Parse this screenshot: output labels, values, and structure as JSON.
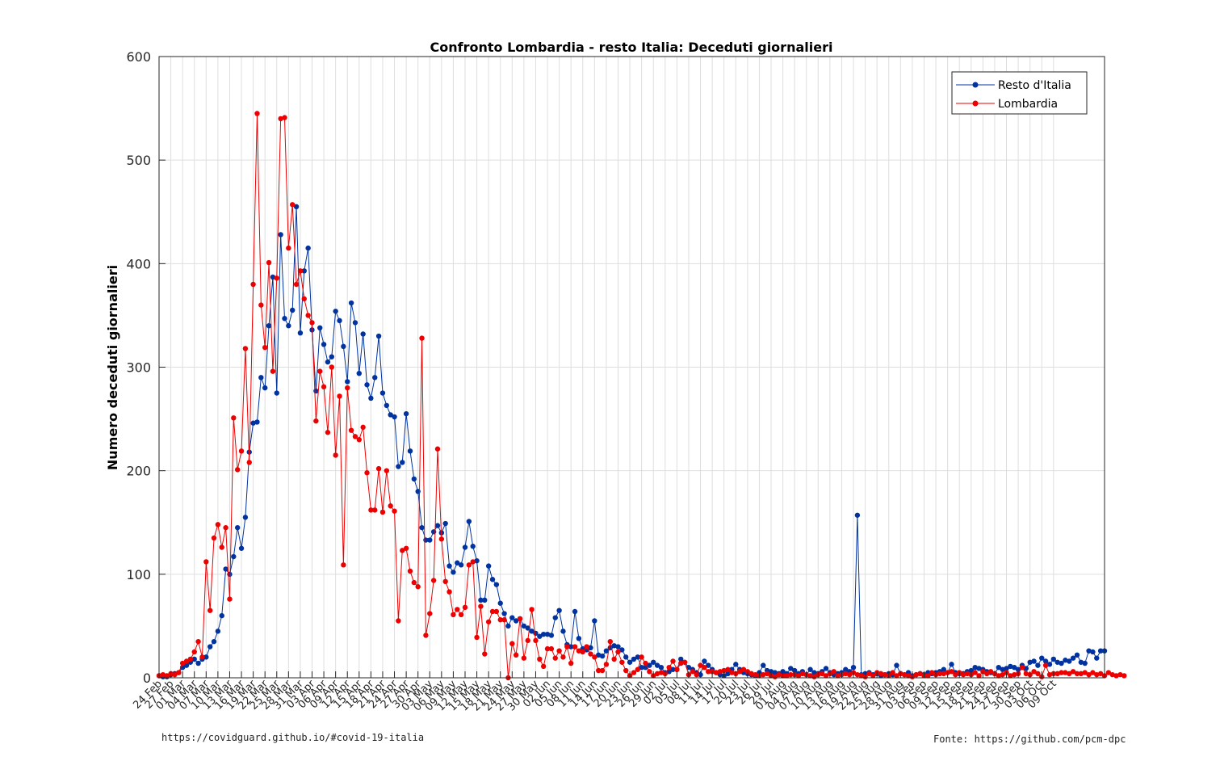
{
  "figure": {
    "footnote_left": "https://covidguard.github.io/#covid-19-italia",
    "footnote_right": "Fonte: https://github.com/pcm-dpc"
  },
  "chart_data": {
    "type": "line",
    "title": "Confronto Lombardia - resto Italia: Deceduti giornalieri",
    "xlabel": "",
    "ylabel": "Numero deceduti giornalieri",
    "ylim": [
      0,
      600
    ],
    "yticks": [
      0,
      100,
      200,
      300,
      400,
      500,
      600
    ],
    "grid": true,
    "legend_position": "top-right",
    "start_date": "2020-02-24",
    "xtick_labels": [
      "24 Feb",
      "27 Feb",
      "01 Mar",
      "04 Mar",
      "07 Mar",
      "10 Mar",
      "13 Mar",
      "16 Mar",
      "19 Mar",
      "22 Mar",
      "25 Mar",
      "28 Mar",
      "31 Mar",
      "03 Apr",
      "06 Apr",
      "09 Apr",
      "12 Apr",
      "15 Apr",
      "18 Apr",
      "21 Apr",
      "24 Apr",
      "27 Apr",
      "30 Apr",
      "03 May",
      "06 May",
      "09 May",
      "12 May",
      "15 May",
      "18 May",
      "21 May",
      "24 May",
      "27 May",
      "30 May",
      "02 Jun",
      "05 Jun",
      "08 Jun",
      "11 Jun",
      "14 Jun",
      "17 Jun",
      "20 Jun",
      "23 Jun",
      "26 Jun",
      "29 Jun",
      "02 Jul",
      "05 Jul",
      "08 Jul",
      "11 Jul",
      "14 Jul",
      "17 Jul",
      "20 Jul",
      "23 Jul",
      "26 Jul",
      "29 Jul",
      "01 Aug",
      "04 Aug",
      "07 Aug",
      "10 Aug",
      "13 Aug",
      "16 Aug",
      "19 Aug",
      "22 Aug",
      "25 Aug",
      "28 Aug",
      "31 Aug",
      "03 Sep",
      "06 Sep",
      "09 Sep",
      "12 Sep",
      "15 Sep",
      "18 Sep",
      "21 Sep",
      "24 Sep",
      "27 Sep",
      "30 Sep",
      "03 Oct",
      "06 Oct",
      "09 Oct"
    ],
    "series": [
      {
        "name": "Resto d'Italia",
        "color": "#0033a0",
        "values": [
          2,
          1,
          1,
          3,
          4,
          5,
          10,
          12,
          15,
          18,
          14,
          18,
          20,
          30,
          35,
          45,
          60,
          105,
          100,
          117,
          145,
          125,
          155,
          218,
          246,
          247,
          290,
          280,
          340,
          387,
          275,
          428,
          347,
          340,
          355,
          455,
          333,
          393,
          415,
          336,
          277,
          338,
          322,
          305,
          310,
          354,
          345,
          320,
          286,
          362,
          343,
          294,
          332,
          283,
          270,
          290,
          330,
          275,
          263,
          254,
          252,
          204,
          208,
          255,
          219,
          192,
          180,
          145,
          133,
          133,
          141,
          147,
          140,
          149,
          108,
          102,
          111,
          109,
          126,
          151,
          127,
          113,
          75,
          75,
          108,
          95,
          90,
          72,
          62,
          50,
          58,
          55,
          57,
          50,
          48,
          45,
          43,
          40,
          42,
          42,
          41,
          58,
          65,
          45,
          32,
          30,
          64,
          38,
          28,
          27,
          29,
          55,
          22,
          21,
          26,
          29,
          31,
          30,
          27,
          20,
          15,
          18,
          20,
          10,
          10,
          12,
          15,
          12,
          10,
          5,
          6,
          8,
          8,
          18,
          15,
          10,
          8,
          5,
          3,
          16,
          12,
          8,
          5,
          3,
          2,
          4,
          8,
          13,
          8,
          5,
          4,
          3,
          2,
          5,
          12,
          7,
          6,
          5,
          4,
          6,
          4,
          9,
          7,
          4,
          6,
          3,
          8,
          5,
          4,
          6,
          9,
          5,
          3,
          4,
          5,
          8,
          6,
          10,
          157,
          3,
          4,
          5,
          3,
          4,
          2,
          3,
          4,
          3,
          12,
          4,
          3,
          5,
          2,
          3,
          4,
          3,
          5,
          4,
          5,
          6,
          8,
          5,
          13,
          5,
          4,
          4,
          6,
          7,
          10,
          9,
          8,
          6,
          5,
          4,
          10,
          8,
          9,
          11,
          10,
          8,
          12,
          9,
          15,
          16,
          12,
          19,
          16,
          13,
          18,
          15,
          14,
          17,
          16,
          19,
          22,
          15,
          14,
          26,
          25,
          19,
          26,
          26
        ]
      },
      {
        "name": "Lombardia",
        "color": "#ee0000",
        "values": [
          2,
          3,
          2,
          4,
          3,
          5,
          14,
          16,
          18,
          25,
          35,
          20,
          112,
          65,
          135,
          148,
          126,
          145,
          76,
          251,
          201,
          219,
          318,
          208,
          380,
          545,
          360,
          319,
          401,
          296,
          386,
          540,
          541,
          415,
          457,
          380,
          393,
          366,
          350,
          343,
          248,
          296,
          281,
          237,
          300,
          215,
          272,
          109,
          280,
          239,
          233,
          230,
          242,
          198,
          162,
          162,
          202,
          160,
          200,
          166,
          161,
          55,
          123,
          125,
          103,
          92,
          88,
          328,
          41,
          62,
          94,
          221,
          134,
          93,
          83,
          61,
          66,
          61,
          68,
          109,
          112,
          39,
          69,
          23,
          54,
          64,
          64,
          56,
          56,
          0,
          33,
          22,
          57,
          19,
          36,
          66,
          36,
          18,
          11,
          28,
          28,
          19,
          26,
          20,
          30,
          14,
          30,
          26,
          25,
          30,
          23,
          20,
          7,
          7,
          13,
          35,
          18,
          25,
          15,
          7,
          2,
          5,
          8,
          20,
          14,
          6,
          2,
          4,
          5,
          4,
          10,
          16,
          8,
          14,
          15,
          3,
          6,
          3,
          12,
          10,
          6,
          6,
          5,
          6,
          7,
          8,
          5,
          4,
          6,
          8,
          6,
          4,
          3,
          2,
          3,
          4,
          2,
          1,
          3,
          2,
          2,
          3,
          3,
          2,
          4,
          3,
          2,
          1,
          3,
          4,
          2,
          4,
          6,
          2,
          3,
          4,
          3,
          5,
          3,
          2,
          1,
          4,
          2,
          5,
          4,
          3,
          2,
          5,
          2,
          4,
          3,
          2,
          1,
          3,
          4,
          2,
          2,
          5,
          3,
          4,
          4,
          5,
          6,
          3,
          5,
          3,
          4,
          3,
          5,
          2,
          6,
          4,
          6,
          4,
          2,
          3,
          5,
          2,
          3,
          4,
          10,
          4,
          3,
          6,
          4,
          1,
          12,
          3,
          4,
          4,
          5,
          5,
          4,
          6,
          4,
          4,
          5,
          3,
          5,
          3,
          4,
          2,
          5,
          3,
          2,
          3,
          2
        ]
      }
    ]
  }
}
